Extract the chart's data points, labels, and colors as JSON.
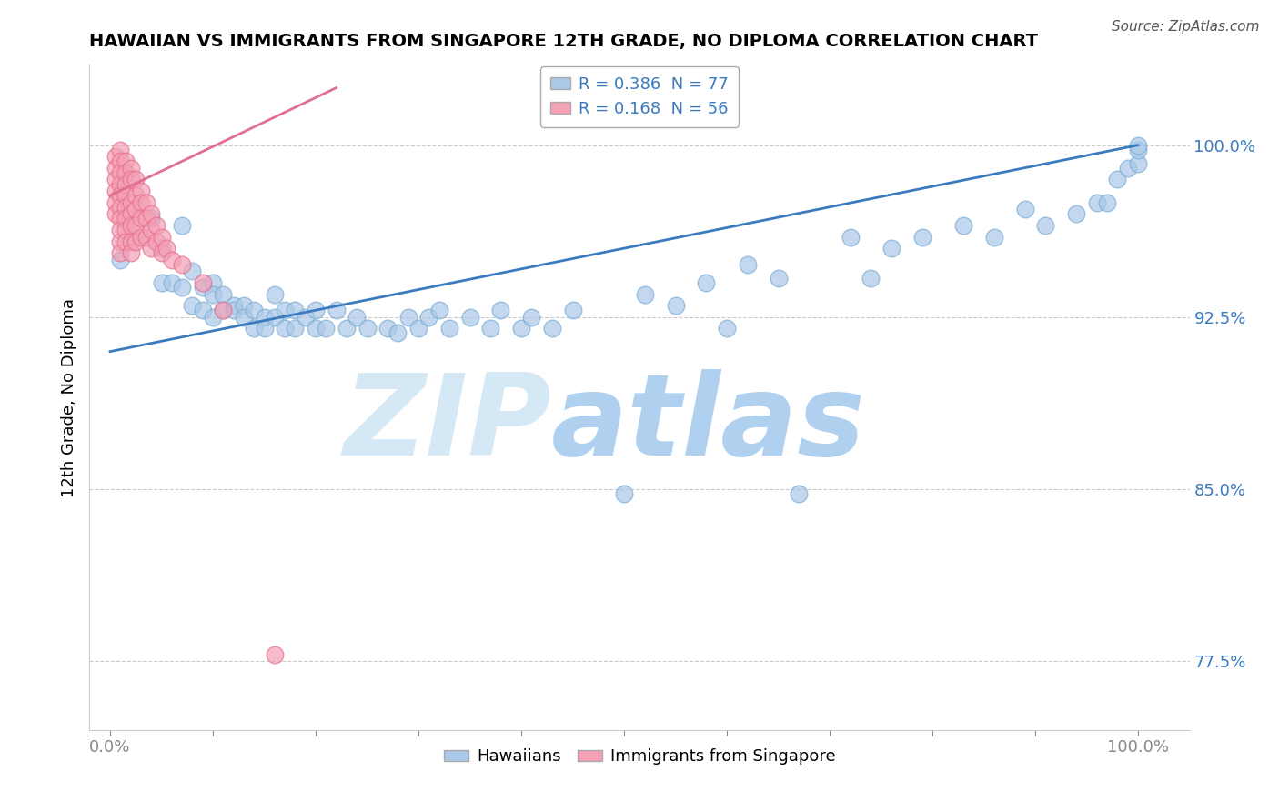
{
  "title": "HAWAIIAN VS IMMIGRANTS FROM SINGAPORE 12TH GRADE, NO DIPLOMA CORRELATION CHART",
  "source": "Source: ZipAtlas.com",
  "ylabel": "12th Grade, No Diploma",
  "ytick_labels": [
    "100.0%",
    "92.5%",
    "85.0%",
    "77.5%"
  ],
  "ytick_values": [
    1.0,
    0.925,
    0.85,
    0.775
  ],
  "legend_r_labels": [
    "R = 0.386  N = 77",
    "R = 0.168  N = 56"
  ],
  "legend_labels": [
    "Hawaiians",
    "Immigrants from Singapore"
  ],
  "blue_line_x": [
    0.0,
    1.0
  ],
  "blue_line_y": [
    0.91,
    1.0
  ],
  "pink_line_x": [
    0.0,
    0.22
  ],
  "pink_line_y": [
    0.978,
    1.025
  ],
  "blue_scatter_x": [
    0.01,
    0.02,
    0.04,
    0.05,
    0.05,
    0.06,
    0.07,
    0.07,
    0.08,
    0.08,
    0.09,
    0.09,
    0.1,
    0.1,
    0.1,
    0.11,
    0.11,
    0.12,
    0.12,
    0.13,
    0.13,
    0.14,
    0.14,
    0.15,
    0.15,
    0.16,
    0.16,
    0.17,
    0.17,
    0.18,
    0.18,
    0.19,
    0.2,
    0.2,
    0.21,
    0.22,
    0.23,
    0.24,
    0.25,
    0.27,
    0.28,
    0.29,
    0.3,
    0.31,
    0.32,
    0.33,
    0.35,
    0.37,
    0.38,
    0.4,
    0.41,
    0.43,
    0.45,
    0.5,
    0.52,
    0.55,
    0.58,
    0.6,
    0.62,
    0.65,
    0.67,
    0.72,
    0.74,
    0.76,
    0.79,
    0.83,
    0.86,
    0.89,
    0.91,
    0.94,
    0.96,
    0.97,
    0.98,
    0.99,
    1.0,
    1.0,
    1.0
  ],
  "blue_scatter_y": [
    0.95,
    0.96,
    0.968,
    0.955,
    0.94,
    0.94,
    0.965,
    0.938,
    0.945,
    0.93,
    0.938,
    0.928,
    0.94,
    0.935,
    0.925,
    0.935,
    0.928,
    0.93,
    0.928,
    0.93,
    0.925,
    0.928,
    0.92,
    0.925,
    0.92,
    0.935,
    0.925,
    0.928,
    0.92,
    0.928,
    0.92,
    0.925,
    0.92,
    0.928,
    0.92,
    0.928,
    0.92,
    0.925,
    0.92,
    0.92,
    0.918,
    0.925,
    0.92,
    0.925,
    0.928,
    0.92,
    0.925,
    0.92,
    0.928,
    0.92,
    0.925,
    0.92,
    0.928,
    0.848,
    0.935,
    0.93,
    0.94,
    0.92,
    0.948,
    0.942,
    0.848,
    0.96,
    0.942,
    0.955,
    0.96,
    0.965,
    0.96,
    0.972,
    0.965,
    0.97,
    0.975,
    0.975,
    0.985,
    0.99,
    0.992,
    0.998,
    1.0
  ],
  "pink_scatter_x": [
    0.005,
    0.005,
    0.005,
    0.005,
    0.005,
    0.005,
    0.01,
    0.01,
    0.01,
    0.01,
    0.01,
    0.01,
    0.01,
    0.01,
    0.01,
    0.01,
    0.015,
    0.015,
    0.015,
    0.015,
    0.015,
    0.015,
    0.015,
    0.015,
    0.02,
    0.02,
    0.02,
    0.02,
    0.02,
    0.02,
    0.02,
    0.025,
    0.025,
    0.025,
    0.025,
    0.025,
    0.03,
    0.03,
    0.03,
    0.03,
    0.035,
    0.035,
    0.035,
    0.04,
    0.04,
    0.04,
    0.045,
    0.045,
    0.05,
    0.05,
    0.055,
    0.06,
    0.07,
    0.09,
    0.11,
    0.16
  ],
  "pink_scatter_y": [
    0.995,
    0.99,
    0.985,
    0.98,
    0.975,
    0.97,
    0.998,
    0.993,
    0.988,
    0.983,
    0.978,
    0.973,
    0.968,
    0.963,
    0.958,
    0.953,
    0.993,
    0.988,
    0.983,
    0.978,
    0.973,
    0.968,
    0.963,
    0.958,
    0.99,
    0.985,
    0.975,
    0.97,
    0.965,
    0.958,
    0.953,
    0.985,
    0.978,
    0.972,
    0.965,
    0.958,
    0.98,
    0.975,
    0.968,
    0.96,
    0.975,
    0.968,
    0.96,
    0.97,
    0.963,
    0.955,
    0.965,
    0.958,
    0.96,
    0.953,
    0.955,
    0.95,
    0.948,
    0.94,
    0.928,
    0.778
  ],
  "blue_color": "#aac8e8",
  "pink_color": "#f4a0b5",
  "blue_edge_color": "#7badd4",
  "pink_edge_color": "#e87090",
  "blue_line_color": "#3a7abf",
  "pink_line_color": "#e07090",
  "background_color": "#ffffff",
  "watermark_zip": "ZIP",
  "watermark_atlas": "atlas",
  "watermark_color_zip": "#d5e8f5",
  "watermark_color_atlas": "#b0d0f0",
  "grid_color": "#cccccc",
  "xlim": [
    -0.02,
    1.05
  ],
  "ylim": [
    0.745,
    1.035
  ],
  "xtick_count": 10,
  "title_fontsize": 14,
  "axis_label_fontsize": 13,
  "tick_fontsize": 13
}
